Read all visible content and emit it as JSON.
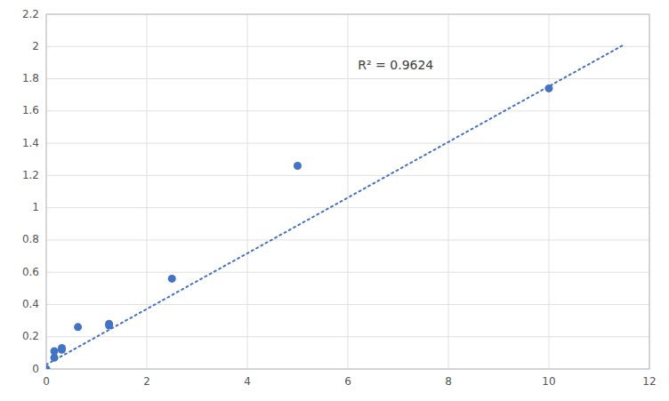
{
  "chart_data": {
    "type": "scatter",
    "series": [
      {
        "type": "scatter",
        "color": "#4472C4",
        "marker": "circle",
        "x": [
          0,
          0.16,
          0.16,
          0.31,
          0.31,
          0.63,
          1.25,
          1.25,
          2.5,
          5.0,
          10.0
        ],
        "values": [
          0.0,
          0.07,
          0.11,
          0.12,
          0.13,
          0.26,
          0.27,
          0.28,
          0.56,
          1.26,
          1.74
        ]
      },
      {
        "type": "line",
        "color": "#4472C4",
        "line_style": "dotted",
        "x": [
          0,
          11.5
        ],
        "values": [
          0.027,
          2.0119
        ]
      }
    ],
    "annotations": [
      {
        "text": "R² = 0.9624",
        "x": 6.2,
        "y": 1.88
      }
    ],
    "xlim": [
      0,
      12
    ],
    "ylim": [
      0,
      2.2
    ],
    "xticks": [
      0,
      2,
      4,
      6,
      8,
      10,
      12
    ],
    "yticks": [
      0,
      0.2,
      0.4,
      0.6,
      0.8,
      1,
      1.2,
      1.4,
      1.6,
      1.8,
      2,
      2.2
    ],
    "grid": true
  }
}
